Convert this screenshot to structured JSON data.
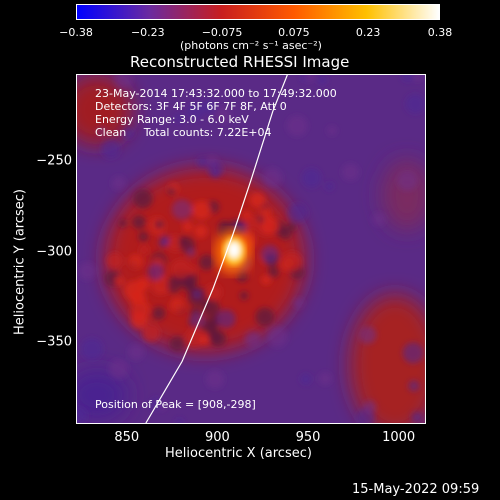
{
  "chart_data": {
    "type": "heatmap",
    "title": "Reconstructed RHESSI Image",
    "xlabel": "Heliocentric X (arcsec)",
    "ylabel": "Heliocentric Y (arcsec)",
    "xlim": [
      822,
      1014
    ],
    "ylim": [
      -394,
      -202
    ],
    "x_ticks": [
      850,
      900,
      950,
      1000
    ],
    "x_tick_labels": [
      "850",
      "900",
      "950",
      "1000"
    ],
    "y_ticks": [
      -250,
      -300,
      -350
    ],
    "y_tick_labels": [
      "−250",
      "−300",
      "−350"
    ],
    "colorbar": {
      "range": [
        -0.38,
        0.38
      ],
      "ticks": [
        -0.38,
        -0.23,
        -0.075,
        0.075,
        0.23,
        0.38
      ],
      "tick_labels": [
        "−0.38",
        "−0.23",
        "−0.075",
        "0.075",
        "0.23",
        "0.38"
      ],
      "unit_label": "(photons cm⁻² s⁻¹ asec⁻²)",
      "colors": [
        "#0000ff",
        "#6a2aa0",
        "#c81e1e",
        "#ff5a00",
        "#ffc000",
        "#ffffff"
      ]
    },
    "annotations": [
      "23-May-2014 17:43:32.000 to 17:49:32.000",
      "Detectors: 3F 4F 5F 6F 7F 8F, Att 0",
      "Energy Range: 3.0 - 6.0 keV",
      "Clean     Total counts: 7.22E+04"
    ],
    "peak_label": "Position of Peak = [908,-298]",
    "peak": [
      908,
      -298
    ],
    "limb_curve": [
      [
        860,
        -394
      ],
      [
        880,
        -360
      ],
      [
        897,
        -320
      ],
      [
        908,
        -290
      ],
      [
        918,
        -260
      ],
      [
        930,
        -222
      ],
      [
        938,
        -202
      ]
    ]
  },
  "footer": {
    "date": "15-May-2022 09:59"
  }
}
